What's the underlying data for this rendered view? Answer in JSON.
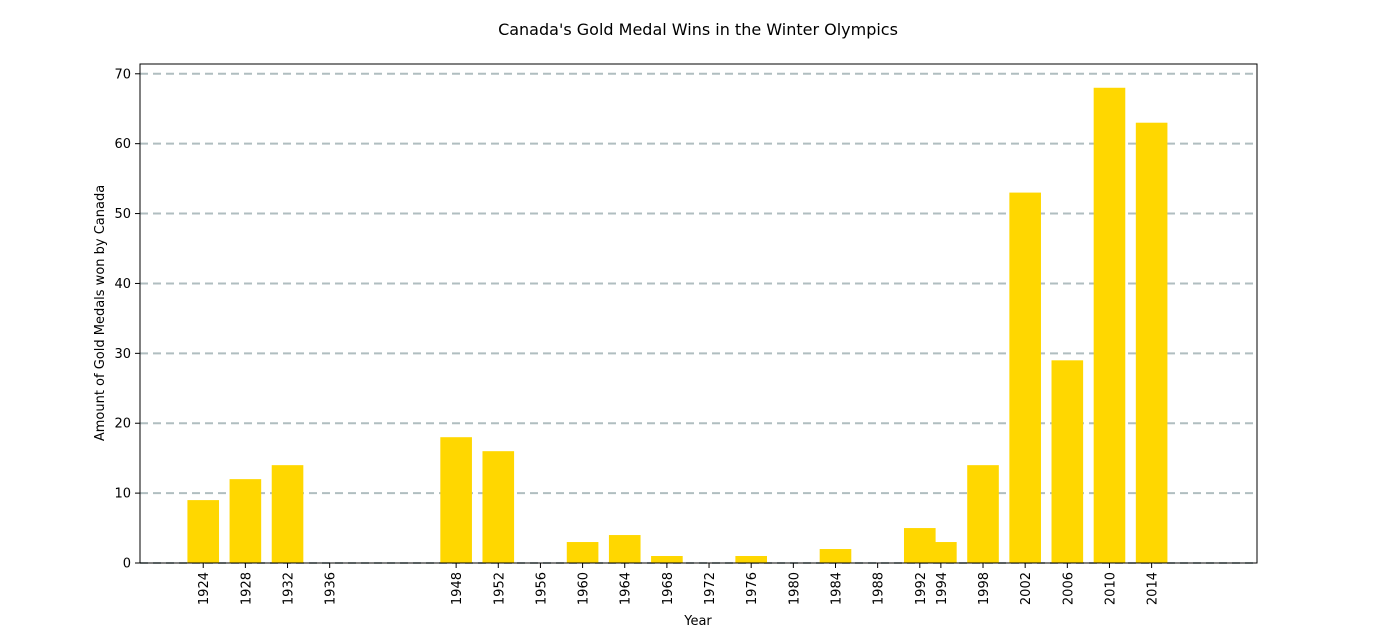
{
  "chart_data": {
    "type": "bar",
    "title": "Canada's Gold Medal Wins in the Winter Olympics",
    "xlabel": "Year",
    "ylabel": "Amount of Gold Medals won by Canada",
    "x": [
      1924,
      1928,
      1932,
      1936,
      1948,
      1952,
      1956,
      1960,
      1964,
      1968,
      1972,
      1976,
      1980,
      1984,
      1988,
      1992,
      1994,
      1998,
      2002,
      2006,
      2010,
      2014
    ],
    "values": [
      9,
      12,
      14,
      0,
      18,
      16,
      0,
      3,
      4,
      1,
      0,
      1,
      0,
      2,
      0,
      5,
      3,
      14,
      53,
      29,
      68,
      63
    ],
    "xlim": [
      1918,
      2024
    ],
    "ylim": [
      0,
      71.4
    ],
    "yticks": [
      0,
      10,
      20,
      30,
      40,
      50,
      60,
      70
    ],
    "grid": "horizontal dashed",
    "bar_color": "#FFD700",
    "grid_color": "#B0BEC0"
  }
}
